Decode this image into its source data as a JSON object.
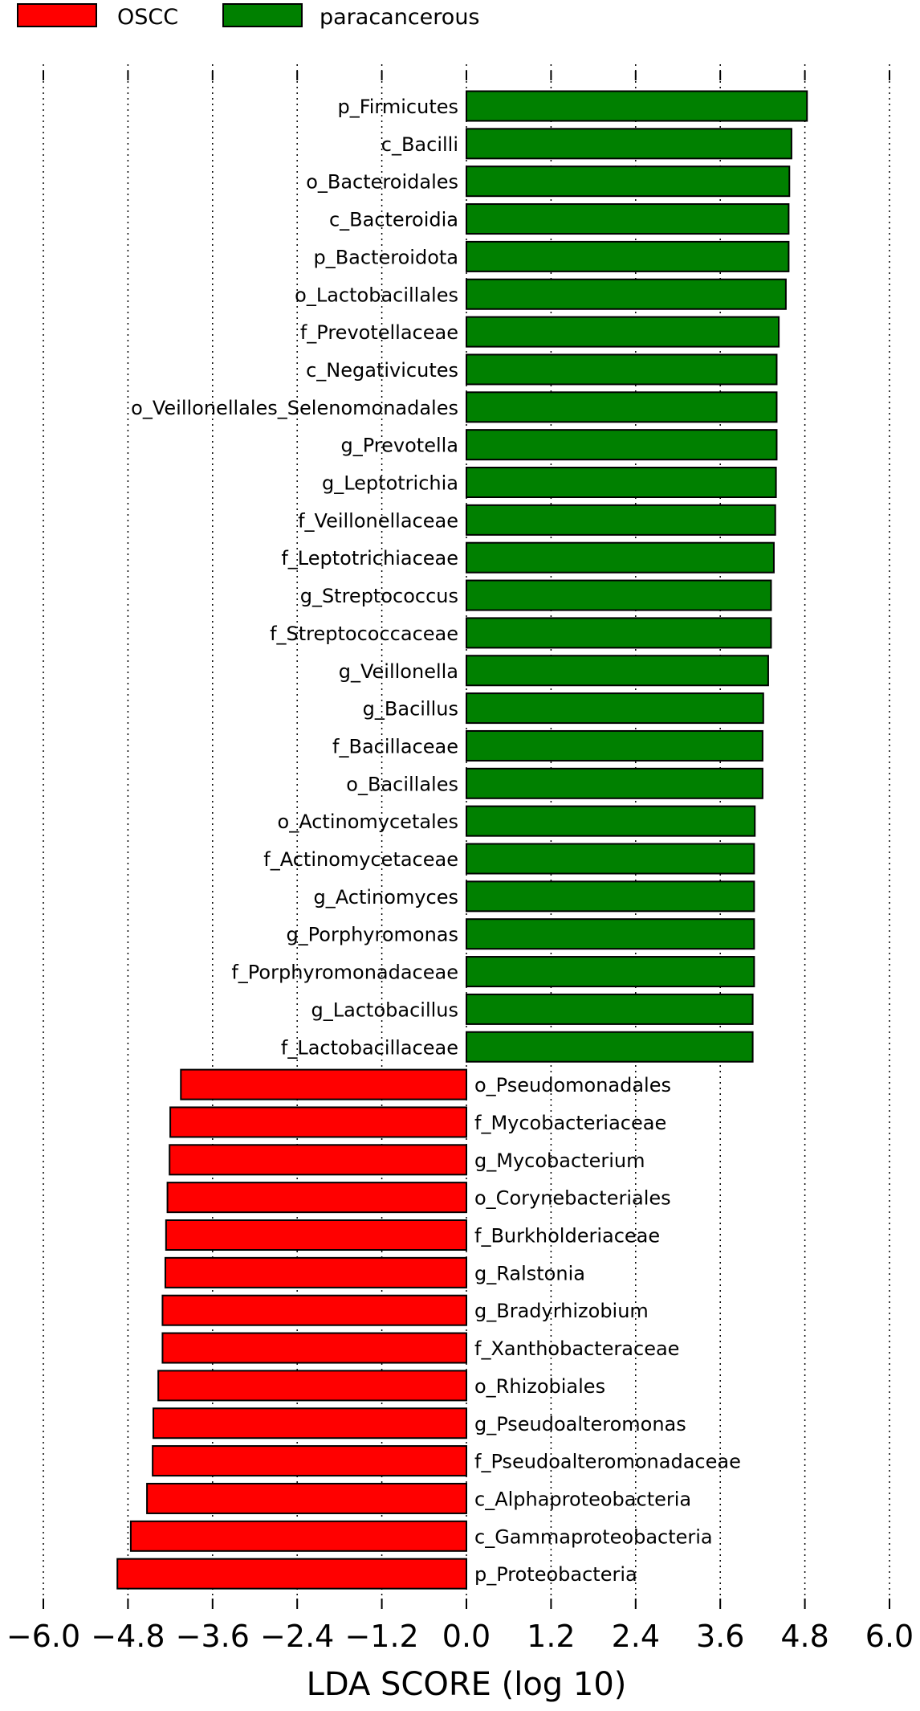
{
  "chart_data": {
    "type": "bar",
    "orientation": "horizontal",
    "xlabel": "LDA SCORE (log 10)",
    "xlim": [
      -6.0,
      6.0
    ],
    "xticks": [
      -6.0,
      -4.8,
      -3.6,
      -2.4,
      -1.2,
      0.0,
      1.2,
      2.4,
      3.6,
      4.8,
      6.0
    ],
    "xtick_labels": [
      "−6.0",
      "−4.8",
      "−3.6",
      "−2.4",
      "−1.2",
      "0.0",
      "1.2",
      "2.4",
      "3.6",
      "4.8",
      "6.0"
    ],
    "grid": "vertical dotted lines at ticks",
    "legend_position": "top-left",
    "legend": [
      {
        "name": "OSCC",
        "color": "#ff0000"
      },
      {
        "name": "paracancerous",
        "color": "#008000"
      }
    ],
    "series": [
      {
        "name": "paracancerous",
        "color": "#008000",
        "categories": [
          "p_Firmicutes",
          "c_Bacilli",
          "o_Bacteroidales",
          "c_Bacteroidia",
          "p_Bacteroidota",
          "o_Lactobacillales",
          "f_Prevotellaceae",
          "c_Negativicutes",
          "o_Veillonellales_Selenomonadales",
          "g_Prevotella",
          "g_Leptotrichia",
          "f_Veillonellaceae",
          "f_Leptotrichiaceae",
          "g_Streptococcus",
          "f_Streptococcaceae",
          "g_Veillonella",
          "g_Bacillus",
          "f_Bacillaceae",
          "o_Bacillales",
          "o_Actinomycetales",
          "f_Actinomycetaceae",
          "g_Actinomyces",
          "g_Porphyromonas",
          "f_Porphyromonadaceae",
          "g_Lactobacillus",
          "f_Lactobacillaceae"
        ],
        "values": [
          4.83,
          4.61,
          4.58,
          4.57,
          4.57,
          4.53,
          4.43,
          4.4,
          4.4,
          4.4,
          4.39,
          4.38,
          4.36,
          4.32,
          4.32,
          4.28,
          4.21,
          4.2,
          4.2,
          4.09,
          4.08,
          4.08,
          4.08,
          4.08,
          4.06,
          4.06
        ]
      },
      {
        "name": "OSCC",
        "color": "#ff0000",
        "categories": [
          "o_Pseudomonadales",
          "f_Mycobacteriaceae",
          "g_Mycobacterium",
          "o_Corynebacteriales",
          "f_Burkholderiaceae",
          "g_Ralstonia",
          "g_Bradyrhizobium",
          "f_Xanthobacteraceae",
          "o_Rhizobiales",
          "g_Pseudoalteromonas",
          "f_Pseudoalteromonadaceae",
          "c_Alphaproteobacteria",
          "c_Gammaproteobacteria",
          "p_Proteobacteria"
        ],
        "values": [
          -4.05,
          -4.2,
          -4.21,
          -4.24,
          -4.26,
          -4.27,
          -4.31,
          -4.31,
          -4.37,
          -4.44,
          -4.45,
          -4.53,
          -4.76,
          -4.95
        ]
      }
    ]
  }
}
